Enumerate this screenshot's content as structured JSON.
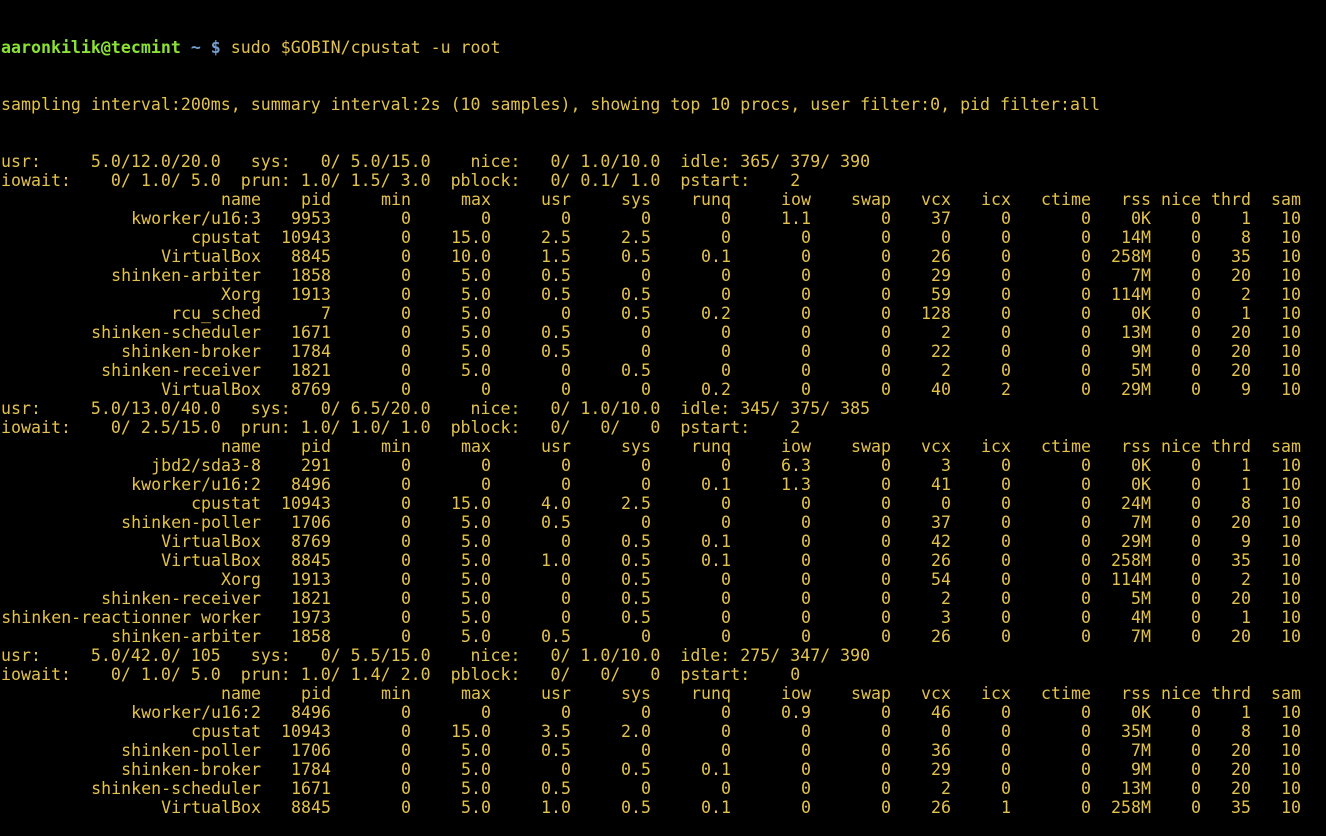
{
  "colors": {
    "background": "#000000",
    "text": "#e3c24c",
    "prompt_user": "#8ae234",
    "prompt_path": "#729fcf"
  },
  "prompt": {
    "user_host": "aaronkilik@tecmint",
    "path_symbol": " ~ $ ",
    "command": "sudo $GOBIN/cpustat -u root"
  },
  "info_line": "sampling interval:200ms, summary interval:2s (10 samples), showing top 10 procs, user filter:0, pid filter:all",
  "columns": [
    "name",
    "pid",
    "min",
    "max",
    "usr",
    "sys",
    "runq",
    "iow",
    "swap",
    "vcx",
    "icx",
    "ctime",
    "rss",
    "nice",
    "thrd",
    "sam"
  ],
  "blocks": [
    {
      "summary": [
        "usr:     5.0/12.0/20.0   sys:   0/ 5.0/15.0    nice:   0/ 1.0/10.0  idle: 365/ 379/ 390",
        "iowait:    0/ 1.0/ 5.0  prun: 1.0/ 1.5/ 3.0  pblock:   0/ 0.1/ 1.0  pstart:    2"
      ],
      "rows": [
        [
          "kworker/u16:3",
          "9953",
          "0",
          "0",
          "0",
          "0",
          "0",
          "1.1",
          "0",
          "37",
          "0",
          "0",
          "0K",
          "0",
          "1",
          "10"
        ],
        [
          "cpustat",
          "10943",
          "0",
          "15.0",
          "2.5",
          "2.5",
          "0",
          "0",
          "0",
          "0",
          "0",
          "0",
          "14M",
          "0",
          "8",
          "10"
        ],
        [
          "VirtualBox",
          "8845",
          "0",
          "10.0",
          "1.5",
          "0.5",
          "0.1",
          "0",
          "0",
          "26",
          "0",
          "0",
          "258M",
          "0",
          "35",
          "10"
        ],
        [
          "shinken-arbiter",
          "1858",
          "0",
          "5.0",
          "0.5",
          "0",
          "0",
          "0",
          "0",
          "29",
          "0",
          "0",
          "7M",
          "0",
          "20",
          "10"
        ],
        [
          "Xorg",
          "1913",
          "0",
          "5.0",
          "0.5",
          "0.5",
          "0",
          "0",
          "0",
          "59",
          "0",
          "0",
          "114M",
          "0",
          "2",
          "10"
        ],
        [
          "rcu_sched",
          "7",
          "0",
          "5.0",
          "0",
          "0.5",
          "0.2",
          "0",
          "0",
          "128",
          "0",
          "0",
          "0K",
          "0",
          "1",
          "10"
        ],
        [
          "shinken-scheduler",
          "1671",
          "0",
          "5.0",
          "0.5",
          "0",
          "0",
          "0",
          "0",
          "2",
          "0",
          "0",
          "13M",
          "0",
          "20",
          "10"
        ],
        [
          "shinken-broker",
          "1784",
          "0",
          "5.0",
          "0.5",
          "0",
          "0",
          "0",
          "0",
          "22",
          "0",
          "0",
          "9M",
          "0",
          "20",
          "10"
        ],
        [
          "shinken-receiver",
          "1821",
          "0",
          "5.0",
          "0",
          "0.5",
          "0",
          "0",
          "0",
          "2",
          "0",
          "0",
          "5M",
          "0",
          "20",
          "10"
        ],
        [
          "VirtualBox",
          "8769",
          "0",
          "0",
          "0",
          "0",
          "0.2",
          "0",
          "0",
          "40",
          "2",
          "0",
          "29M",
          "0",
          "9",
          "10"
        ]
      ]
    },
    {
      "summary": [
        "usr:     5.0/13.0/40.0   sys:   0/ 6.5/20.0    nice:   0/ 1.0/10.0  idle: 345/ 375/ 385",
        "iowait:    0/ 2.5/15.0  prun: 1.0/ 1.0/ 1.0  pblock:   0/   0/   0  pstart:    2"
      ],
      "rows": [
        [
          "jbd2/sda3-8",
          "291",
          "0",
          "0",
          "0",
          "0",
          "0",
          "6.3",
          "0",
          "3",
          "0",
          "0",
          "0K",
          "0",
          "1",
          "10"
        ],
        [
          "kworker/u16:2",
          "8496",
          "0",
          "0",
          "0",
          "0",
          "0.1",
          "1.3",
          "0",
          "41",
          "0",
          "0",
          "0K",
          "0",
          "1",
          "10"
        ],
        [
          "cpustat",
          "10943",
          "0",
          "15.0",
          "4.0",
          "2.5",
          "0",
          "0",
          "0",
          "0",
          "0",
          "0",
          "24M",
          "0",
          "8",
          "10"
        ],
        [
          "shinken-poller",
          "1706",
          "0",
          "5.0",
          "0.5",
          "0",
          "0",
          "0",
          "0",
          "37",
          "0",
          "0",
          "7M",
          "0",
          "20",
          "10"
        ],
        [
          "VirtualBox",
          "8769",
          "0",
          "5.0",
          "0",
          "0.5",
          "0.1",
          "0",
          "0",
          "42",
          "0",
          "0",
          "29M",
          "0",
          "9",
          "10"
        ],
        [
          "VirtualBox",
          "8845",
          "0",
          "5.0",
          "1.0",
          "0.5",
          "0.1",
          "0",
          "0",
          "26",
          "0",
          "0",
          "258M",
          "0",
          "35",
          "10"
        ],
        [
          "Xorg",
          "1913",
          "0",
          "5.0",
          "0",
          "0.5",
          "0",
          "0",
          "0",
          "54",
          "0",
          "0",
          "114M",
          "0",
          "2",
          "10"
        ],
        [
          "shinken-receiver",
          "1821",
          "0",
          "5.0",
          "0",
          "0.5",
          "0",
          "0",
          "0",
          "2",
          "0",
          "0",
          "5M",
          "0",
          "20",
          "10"
        ],
        [
          "shinken-reactionner worker",
          "1973",
          "0",
          "5.0",
          "0",
          "0.5",
          "0",
          "0",
          "0",
          "3",
          "0",
          "0",
          "4M",
          "0",
          "1",
          "10"
        ],
        [
          "shinken-arbiter",
          "1858",
          "0",
          "5.0",
          "0.5",
          "0",
          "0",
          "0",
          "0",
          "26",
          "0",
          "0",
          "7M",
          "0",
          "20",
          "10"
        ]
      ]
    },
    {
      "summary": [
        "usr:     5.0/42.0/ 105   sys:   0/ 5.5/15.0    nice:   0/ 1.0/10.0  idle: 275/ 347/ 390",
        "iowait:    0/ 1.0/ 5.0  prun: 1.0/ 1.4/ 2.0  pblock:   0/   0/   0  pstart:    0"
      ],
      "rows": [
        [
          "kworker/u16:2",
          "8496",
          "0",
          "0",
          "0",
          "0",
          "0",
          "0.9",
          "0",
          "46",
          "0",
          "0",
          "0K",
          "0",
          "1",
          "10"
        ],
        [
          "cpustat",
          "10943",
          "0",
          "15.0",
          "3.5",
          "2.0",
          "0",
          "0",
          "0",
          "0",
          "0",
          "0",
          "35M",
          "0",
          "8",
          "10"
        ],
        [
          "shinken-poller",
          "1706",
          "0",
          "5.0",
          "0.5",
          "0",
          "0",
          "0",
          "0",
          "36",
          "0",
          "0",
          "7M",
          "0",
          "20",
          "10"
        ],
        [
          "shinken-broker",
          "1784",
          "0",
          "5.0",
          "0",
          "0.5",
          "0.1",
          "0",
          "0",
          "29",
          "0",
          "0",
          "9M",
          "0",
          "20",
          "10"
        ],
        [
          "shinken-scheduler",
          "1671",
          "0",
          "5.0",
          "0.5",
          "0",
          "0",
          "0",
          "0",
          "2",
          "0",
          "0",
          "13M",
          "0",
          "20",
          "10"
        ],
        [
          "VirtualBox",
          "8845",
          "0",
          "5.0",
          "1.0",
          "0.5",
          "0.1",
          "0",
          "0",
          "26",
          "1",
          "0",
          "258M",
          "0",
          "35",
          "10"
        ]
      ]
    }
  ]
}
